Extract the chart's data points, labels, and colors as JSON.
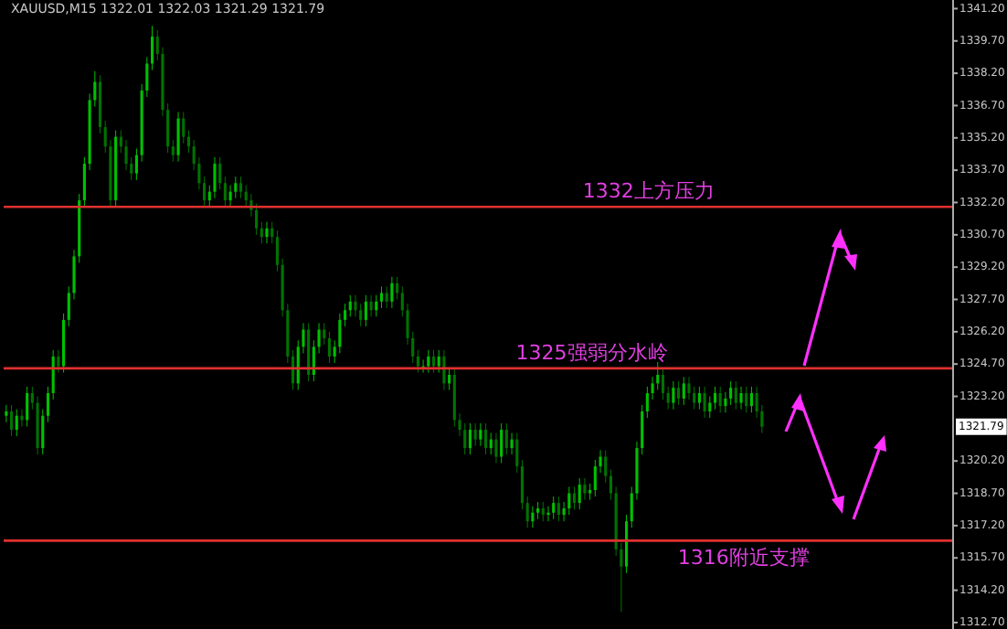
{
  "chart_data": {
    "type": "candlestick",
    "title": "XAUUSD,M15  1322.01 1322.03 1321.29 1321.79",
    "colors": [
      "#00c000",
      "#007300",
      "#00c000",
      "#007300",
      "#00c000",
      "#007300",
      "#007300",
      "#00c000",
      "#00c000",
      "#00c000",
      "#007300",
      "#00c000",
      "#00c000",
      "#00c000",
      "#00c000",
      "#00c000",
      "#00c000",
      "#00c000",
      "#007300",
      "#007300",
      "#007300",
      "#00c000",
      "#007300",
      "#007300",
      "#007300",
      "#00c000",
      "#00c000",
      "#00c000",
      "#00c000",
      "#007300",
      "#007300",
      "#007300",
      "#007300",
      "#00c000",
      "#007300",
      "#007300",
      "#007300",
      "#007300",
      "#007300",
      "#00c000",
      "#00c000",
      "#007300",
      "#007300",
      "#00c000",
      "#00c000",
      "#007300",
      "#007300",
      "#007300",
      "#007300",
      "#007300",
      "#00c000",
      "#007300",
      "#007300",
      "#007300",
      "#007300",
      "#007300",
      "#00c000",
      "#00c000",
      "#007300",
      "#00c000",
      "#00c000",
      "#007300",
      "#007300",
      "#00c000",
      "#00c000",
      "#00c000",
      "#00c000",
      "#007300",
      "#007300",
      "#00c000",
      "#007300",
      "#00c000",
      "#00c000",
      "#007300",
      "#00c000",
      "#007300",
      "#007300",
      "#007300",
      "#007300",
      "#007300",
      "#00c000",
      "#00c000",
      "#007300",
      "#00c000",
      "#007300",
      "#00c000",
      "#007300",
      "#007300",
      "#007300",
      "#00c000",
      "#007300",
      "#00c000",
      "#007300",
      "#00c000",
      "#007300",
      "#00c000",
      "#007300",
      "#00c000",
      "#007300",
      "#007300",
      "#007300",
      "#00c000",
      "#00c000",
      "#007300",
      "#00c000",
      "#00c000",
      "#007300",
      "#00c000",
      "#00c000",
      "#007300",
      "#00c000",
      "#007300",
      "#00c000",
      "#00c000",
      "#00c000",
      "#007300",
      "#007300",
      "#007300",
      "#007300",
      "#00c000",
      "#00c000",
      "#00c000",
      "#00c000",
      "#00c000",
      "#00c000",
      "#00c000",
      "#007300",
      "#007300",
      "#00c000",
      "#007300",
      "#00c000",
      "#007300",
      "#007300",
      "#00c000",
      "#007300",
      "#00c000",
      "#00c000",
      "#007300",
      "#00c000",
      "#00c000",
      "#007300",
      "#00c000",
      "#007300",
      "#00c000",
      "#007300",
      "#007300",
      null,
      null,
      null,
      null,
      null,
      null,
      null,
      null,
      null,
      null,
      null,
      null,
      null,
      null,
      null,
      null,
      null,
      null,
      null,
      null,
      null,
      null,
      null,
      null,
      null,
      null,
      null,
      null,
      null,
      null,
      null,
      null,
      null,
      null,
      null,
      null
    ],
    "tick_labels": "y",
    "categories": [
      null,
      null,
      null,
      null,
      null,
      null,
      null,
      null,
      null,
      null,
      null,
      null,
      null,
      null,
      null,
      null,
      null,
      null,
      null,
      null,
      null,
      null,
      null,
      null,
      null,
      null,
      null,
      null,
      null,
      null,
      null,
      null,
      null,
      null,
      null,
      null,
      null,
      null,
      null,
      null,
      null,
      null,
      null,
      null,
      null,
      null,
      null,
      null,
      null,
      null,
      null,
      null,
      null,
      null,
      null,
      null,
      null,
      null,
      null,
      null,
      null,
      null,
      null,
      null,
      null,
      null,
      null,
      null,
      null,
      null,
      null,
      null,
      null,
      null,
      null,
      null,
      null,
      null,
      null,
      null,
      null,
      null,
      null,
      null,
      null,
      null,
      null,
      null,
      null,
      null,
      null,
      null,
      null,
      null,
      null,
      null,
      null,
      null,
      null,
      null,
      null,
      null,
      null,
      null,
      null,
      null,
      null,
      null,
      null,
      null,
      null,
      null,
      null,
      null,
      null,
      null,
      null,
      null,
      null,
      null,
      null,
      null,
      null,
      null,
      null,
      null,
      null,
      null,
      null,
      null,
      null,
      null,
      null,
      null,
      null,
      null,
      null,
      null,
      null,
      null,
      null,
      null,
      null,
      null,
      null,
      null,
      null,
      null,
      null,
      null,
      null,
      null,
      null,
      null,
      null,
      null,
      null,
      null,
      null,
      null,
      null,
      null,
      null,
      null,
      null,
      null,
      null,
      null,
      null,
      null,
      null,
      null,
      null,
      null,
      null,
      null,
      null,
      null,
      null,
      null,
      null,
      null
    ],
    "ohlc": [
      [
        1322.3,
        1322.8,
        1322.0,
        1322.5
      ],
      [
        1322.5,
        1322.8,
        1321.35,
        1321.65
      ],
      [
        1321.65,
        1322.6,
        1321.35,
        1322.3
      ],
      [
        1322.3,
        1322.6,
        1321.8,
        1322.1
      ],
      [
        1322.1,
        1323.65,
        1321.8,
        1323.35
      ],
      [
        1323.35,
        1323.65,
        1322.6,
        1322.9
      ],
      [
        1322.9,
        1323.2,
        1320.5,
        1320.8
      ],
      [
        1320.8,
        1322.6,
        1320.5,
        1322.3
      ],
      [
        1322.3,
        1323.65,
        1322.0,
        1323.35
      ],
      [
        1323.35,
        1325.35,
        1323.05,
        1325.05
      ],
      [
        1325.05,
        1325.35,
        1324.3,
        1324.6
      ],
      [
        1324.6,
        1327.05,
        1324.3,
        1326.75
      ],
      [
        1326.75,
        1328.3,
        1326.45,
        1328.0
      ],
      [
        1328.0,
        1330.0,
        1327.7,
        1329.7
      ],
      [
        1329.7,
        1332.6,
        1329.4,
        1332.3
      ],
      [
        1332.3,
        1334.3,
        1332.0,
        1334.0
      ],
      [
        1334.0,
        1337.25,
        1333.7,
        1336.95
      ],
      [
        1336.95,
        1338.3,
        1336.65,
        1337.8
      ],
      [
        1337.8,
        1338.1,
        1335.4,
        1335.7
      ],
      [
        1335.7,
        1336.0,
        1334.5,
        1334.8
      ],
      [
        1334.8,
        1335.1,
        1332.0,
        1332.3
      ],
      [
        1332.3,
        1335.55,
        1332.0,
        1335.25
      ],
      [
        1335.25,
        1335.55,
        1334.5,
        1334.8
      ],
      [
        1334.8,
        1335.1,
        1333.7,
        1334.0
      ],
      [
        1334.0,
        1334.3,
        1333.25,
        1333.55
      ],
      [
        1333.55,
        1334.7,
        1333.25,
        1334.4
      ],
      [
        1334.4,
        1337.7,
        1334.1,
        1337.4
      ],
      [
        1337.4,
        1338.95,
        1337.1,
        1338.65
      ],
      [
        1338.65,
        1340.4,
        1338.35,
        1339.9
      ],
      [
        1339.9,
        1340.2,
        1338.8,
        1339.1
      ],
      [
        1339.1,
        1339.4,
        1336.2,
        1336.5
      ],
      [
        1336.5,
        1336.8,
        1334.5,
        1334.8
      ],
      [
        1334.8,
        1335.1,
        1334.1,
        1334.4
      ],
      [
        1334.4,
        1336.4,
        1334.1,
        1336.1
      ],
      [
        1336.1,
        1336.4,
        1334.95,
        1335.25
      ],
      [
        1335.25,
        1335.55,
        1334.5,
        1334.8
      ],
      [
        1334.8,
        1335.1,
        1333.7,
        1334.0
      ],
      [
        1334.0,
        1334.3,
        1332.8,
        1333.1
      ],
      [
        1333.1,
        1333.4,
        1332.0,
        1332.3
      ],
      [
        1332.3,
        1333.0,
        1332.0,
        1332.7
      ],
      [
        1332.7,
        1334.3,
        1332.4,
        1334.0
      ],
      [
        1334.0,
        1334.3,
        1332.8,
        1333.1
      ],
      [
        1333.1,
        1333.4,
        1332.0,
        1332.3
      ],
      [
        1332.3,
        1333.0,
        1332.0,
        1332.7
      ],
      [
        1332.7,
        1333.4,
        1332.4,
        1333.1
      ],
      [
        1333.1,
        1333.4,
        1332.4,
        1332.7
      ],
      [
        1332.7,
        1333.0,
        1332.0,
        1332.3
      ],
      [
        1332.3,
        1332.6,
        1331.55,
        1331.85
      ],
      [
        1331.85,
        1332.15,
        1330.7,
        1331.0
      ],
      [
        1331.0,
        1331.3,
        1330.3,
        1330.6
      ],
      [
        1330.6,
        1331.3,
        1330.3,
        1331.0
      ],
      [
        1331.0,
        1331.3,
        1330.3,
        1330.6
      ],
      [
        1330.6,
        1330.9,
        1329.0,
        1329.3
      ],
      [
        1329.3,
        1329.6,
        1326.9,
        1327.2
      ],
      [
        1327.2,
        1327.5,
        1324.75,
        1325.05
      ],
      [
        1325.05,
        1325.35,
        1323.5,
        1323.8
      ],
      [
        1323.8,
        1325.8,
        1323.5,
        1325.5
      ],
      [
        1325.5,
        1326.6,
        1325.2,
        1326.3
      ],
      [
        1326.3,
        1326.6,
        1323.9,
        1324.2
      ],
      [
        1324.2,
        1325.8,
        1323.9,
        1325.5
      ],
      [
        1325.5,
        1326.6,
        1325.2,
        1326.3
      ],
      [
        1326.3,
        1326.6,
        1325.6,
        1325.9
      ],
      [
        1325.9,
        1326.2,
        1324.75,
        1325.05
      ],
      [
        1325.05,
        1325.8,
        1324.75,
        1325.5
      ],
      [
        1325.5,
        1327.05,
        1325.2,
        1326.75
      ],
      [
        1326.75,
        1327.5,
        1326.45,
        1327.2
      ],
      [
        1327.2,
        1327.9,
        1326.9,
        1327.6
      ],
      [
        1327.6,
        1327.9,
        1326.9,
        1327.2
      ],
      [
        1327.2,
        1327.5,
        1326.45,
        1326.75
      ],
      [
        1326.75,
        1327.9,
        1326.45,
        1327.6
      ],
      [
        1327.6,
        1327.9,
        1326.9,
        1327.2
      ],
      [
        1327.2,
        1327.9,
        1326.9,
        1327.6
      ],
      [
        1327.6,
        1328.3,
        1327.3,
        1328.0
      ],
      [
        1328.0,
        1328.3,
        1327.3,
        1327.6
      ],
      [
        1327.6,
        1328.75,
        1327.3,
        1328.45
      ],
      [
        1328.45,
        1328.75,
        1327.7,
        1328.0
      ],
      [
        1328.0,
        1328.3,
        1326.9,
        1327.2
      ],
      [
        1327.2,
        1327.5,
        1325.6,
        1325.9
      ],
      [
        1325.9,
        1326.2,
        1324.75,
        1325.05
      ],
      [
        1325.05,
        1325.35,
        1324.3,
        1324.6
      ],
      [
        1324.6,
        1324.9,
        1324.3,
        1324.6
      ],
      [
        1324.6,
        1325.35,
        1324.3,
        1325.05
      ],
      [
        1325.05,
        1325.35,
        1324.3,
        1324.6
      ],
      [
        1324.6,
        1325.35,
        1324.3,
        1325.05
      ],
      [
        1325.05,
        1325.35,
        1323.5,
        1323.8
      ],
      [
        1323.8,
        1324.5,
        1323.5,
        1324.2
      ],
      [
        1324.2,
        1324.5,
        1321.8,
        1322.1
      ],
      [
        1322.1,
        1322.4,
        1321.35,
        1321.65
      ],
      [
        1321.65,
        1321.95,
        1320.5,
        1320.8
      ],
      [
        1320.8,
        1321.95,
        1320.5,
        1321.65
      ],
      [
        1321.65,
        1321.95,
        1320.9,
        1321.2
      ],
      [
        1321.2,
        1321.95,
        1320.9,
        1321.65
      ],
      [
        1321.65,
        1321.95,
        1320.5,
        1320.8
      ],
      [
        1320.8,
        1321.5,
        1320.5,
        1321.2
      ],
      [
        1321.2,
        1321.5,
        1320.1,
        1320.4
      ],
      [
        1320.4,
        1321.95,
        1320.1,
        1321.65
      ],
      [
        1321.65,
        1321.95,
        1320.5,
        1320.8
      ],
      [
        1320.8,
        1321.5,
        1320.5,
        1321.2
      ],
      [
        1321.2,
        1321.5,
        1319.65,
        1319.95
      ],
      [
        1319.95,
        1320.25,
        1317.95,
        1318.25
      ],
      [
        1318.25,
        1318.55,
        1317.1,
        1317.4
      ],
      [
        1317.4,
        1318.1,
        1317.1,
        1317.8
      ],
      [
        1317.8,
        1318.3,
        1317.5,
        1318.0
      ],
      [
        1318.0,
        1318.3,
        1317.4,
        1317.7
      ],
      [
        1317.7,
        1318.1,
        1317.4,
        1317.8
      ],
      [
        1317.8,
        1318.55,
        1317.5,
        1318.25
      ],
      [
        1318.25,
        1318.55,
        1317.4,
        1317.7
      ],
      [
        1317.7,
        1318.3,
        1317.4,
        1318.0
      ],
      [
        1318.0,
        1319.0,
        1317.7,
        1318.7
      ],
      [
        1318.7,
        1319.0,
        1317.95,
        1318.25
      ],
      [
        1318.25,
        1319.4,
        1317.95,
        1319.1
      ],
      [
        1319.1,
        1319.4,
        1318.4,
        1318.7
      ],
      [
        1318.7,
        1319.15,
        1318.4,
        1318.85
      ],
      [
        1318.85,
        1320.25,
        1318.55,
        1319.95
      ],
      [
        1319.95,
        1320.7,
        1319.65,
        1320.4
      ],
      [
        1320.4,
        1320.7,
        1319.2,
        1319.5
      ],
      [
        1319.5,
        1319.8,
        1318.4,
        1318.7
      ],
      [
        1318.7,
        1319.0,
        1315.8,
        1316.1
      ],
      [
        1316.1,
        1316.4,
        1313.2,
        1315.3
      ],
      [
        1315.3,
        1317.7,
        1315.0,
        1317.4
      ],
      [
        1317.4,
        1319.0,
        1317.1,
        1318.7
      ],
      [
        1318.7,
        1321.1,
        1318.4,
        1320.8
      ],
      [
        1320.8,
        1322.8,
        1320.5,
        1322.5
      ],
      [
        1322.5,
        1323.65,
        1322.2,
        1323.35
      ],
      [
        1323.35,
        1324.1,
        1323.05,
        1323.8
      ],
      [
        1323.8,
        1324.8,
        1323.5,
        1324.2
      ],
      [
        1324.2,
        1324.5,
        1323.05,
        1323.35
      ],
      [
        1323.35,
        1323.65,
        1322.6,
        1322.9
      ],
      [
        1322.9,
        1323.9,
        1322.6,
        1323.6
      ],
      [
        1323.6,
        1323.9,
        1322.8,
        1323.1
      ],
      [
        1323.1,
        1324.1,
        1322.8,
        1323.8
      ],
      [
        1323.8,
        1324.1,
        1323.05,
        1323.35
      ],
      [
        1323.35,
        1323.65,
        1322.6,
        1322.9
      ],
      [
        1322.9,
        1323.65,
        1322.6,
        1323.35
      ],
      [
        1323.35,
        1323.65,
        1322.2,
        1322.5
      ],
      [
        1322.5,
        1323.2,
        1322.2,
        1322.9
      ],
      [
        1322.9,
        1323.65,
        1322.6,
        1323.35
      ],
      [
        1323.35,
        1323.65,
        1322.45,
        1322.75
      ],
      [
        1322.75,
        1323.4,
        1322.45,
        1323.1
      ],
      [
        1323.1,
        1323.9,
        1322.8,
        1323.6
      ],
      [
        1323.6,
        1323.9,
        1322.6,
        1322.9
      ],
      [
        1322.9,
        1323.65,
        1322.6,
        1323.35
      ],
      [
        1323.35,
        1323.65,
        1322.45,
        1322.75
      ],
      [
        1322.75,
        1323.65,
        1322.45,
        1323.35
      ],
      [
        1323.35,
        1323.65,
        1322.2,
        1322.5
      ],
      [
        1322.5,
        1322.8,
        1321.5,
        1321.79
      ],
      null,
      null,
      null,
      null,
      null,
      null,
      null,
      null,
      null,
      null,
      null,
      null,
      null,
      null,
      null,
      null,
      null,
      null,
      null,
      null,
      null,
      null,
      null,
      null,
      null,
      null,
      null,
      null,
      null,
      null,
      null,
      null,
      null,
      null,
      null,
      null
    ],
    "ylim": [
      1312.4,
      1341.6
    ],
    "yticks": [
      {
        "value": 1341.2,
        "label": "1341.20"
      },
      {
        "value": 1339.7,
        "label": "1339.70"
      },
      {
        "value": 1338.2,
        "label": "1338.20"
      },
      {
        "value": 1336.7,
        "label": "1336.70"
      },
      {
        "value": 1335.2,
        "label": "1335.20"
      },
      {
        "value": 1333.7,
        "label": "1333.70"
      },
      {
        "value": 1332.2,
        "label": "1332.20"
      },
      {
        "value": 1330.7,
        "label": "1330.70"
      },
      {
        "value": 1329.2,
        "label": "1329.20"
      },
      {
        "value": 1327.7,
        "label": "1327.70"
      },
      {
        "value": 1326.2,
        "label": "1326.20"
      },
      {
        "value": 1324.7,
        "label": "1324.70"
      },
      {
        "value": 1323.2,
        "label": "1323.20"
      },
      {
        "value": 1320.2,
        "label": "1320.20"
      },
      {
        "value": 1318.7,
        "label": "1318.70"
      },
      {
        "value": 1317.2,
        "label": "1317.20"
      },
      {
        "value": 1315.7,
        "label": "1315.70"
      },
      {
        "value": 1314.2,
        "label": "1314.20"
      },
      {
        "value": 1312.7,
        "label": "1312.70"
      }
    ],
    "ref_lines": [
      {
        "axis": "y",
        "value": 1332,
        "label": "1332上方压力",
        "color": "#e03030"
      },
      {
        "axis": "y",
        "value": 1324.5,
        "label": "1325强弱分水岭",
        "color": "#e03030"
      },
      {
        "axis": "y",
        "value": 1316.5,
        "label": "1316附近支撑",
        "color": "#e03030"
      }
    ],
    "annotations": [
      {
        "text": "1321.79",
        "y": 1321.79
      }
    ]
  }
}
